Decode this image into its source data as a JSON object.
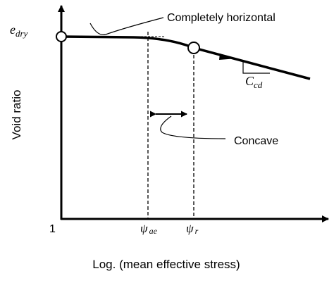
{
  "diagram": {
    "y_axis_label": "Void ratio",
    "x_axis_label": "Log. (mean effective stress)",
    "origin_tick": "1",
    "e_dry": {
      "main": "e",
      "sub": "dry"
    },
    "c_cd": {
      "main": "C",
      "sub": "cd"
    },
    "psi_ae": {
      "main": "ψ",
      "sub": "ae"
    },
    "psi_r": {
      "main": "ψ",
      "sub": "r"
    },
    "annotation_horizontal": "Completely horizontal",
    "annotation_concave": "Concave"
  }
}
